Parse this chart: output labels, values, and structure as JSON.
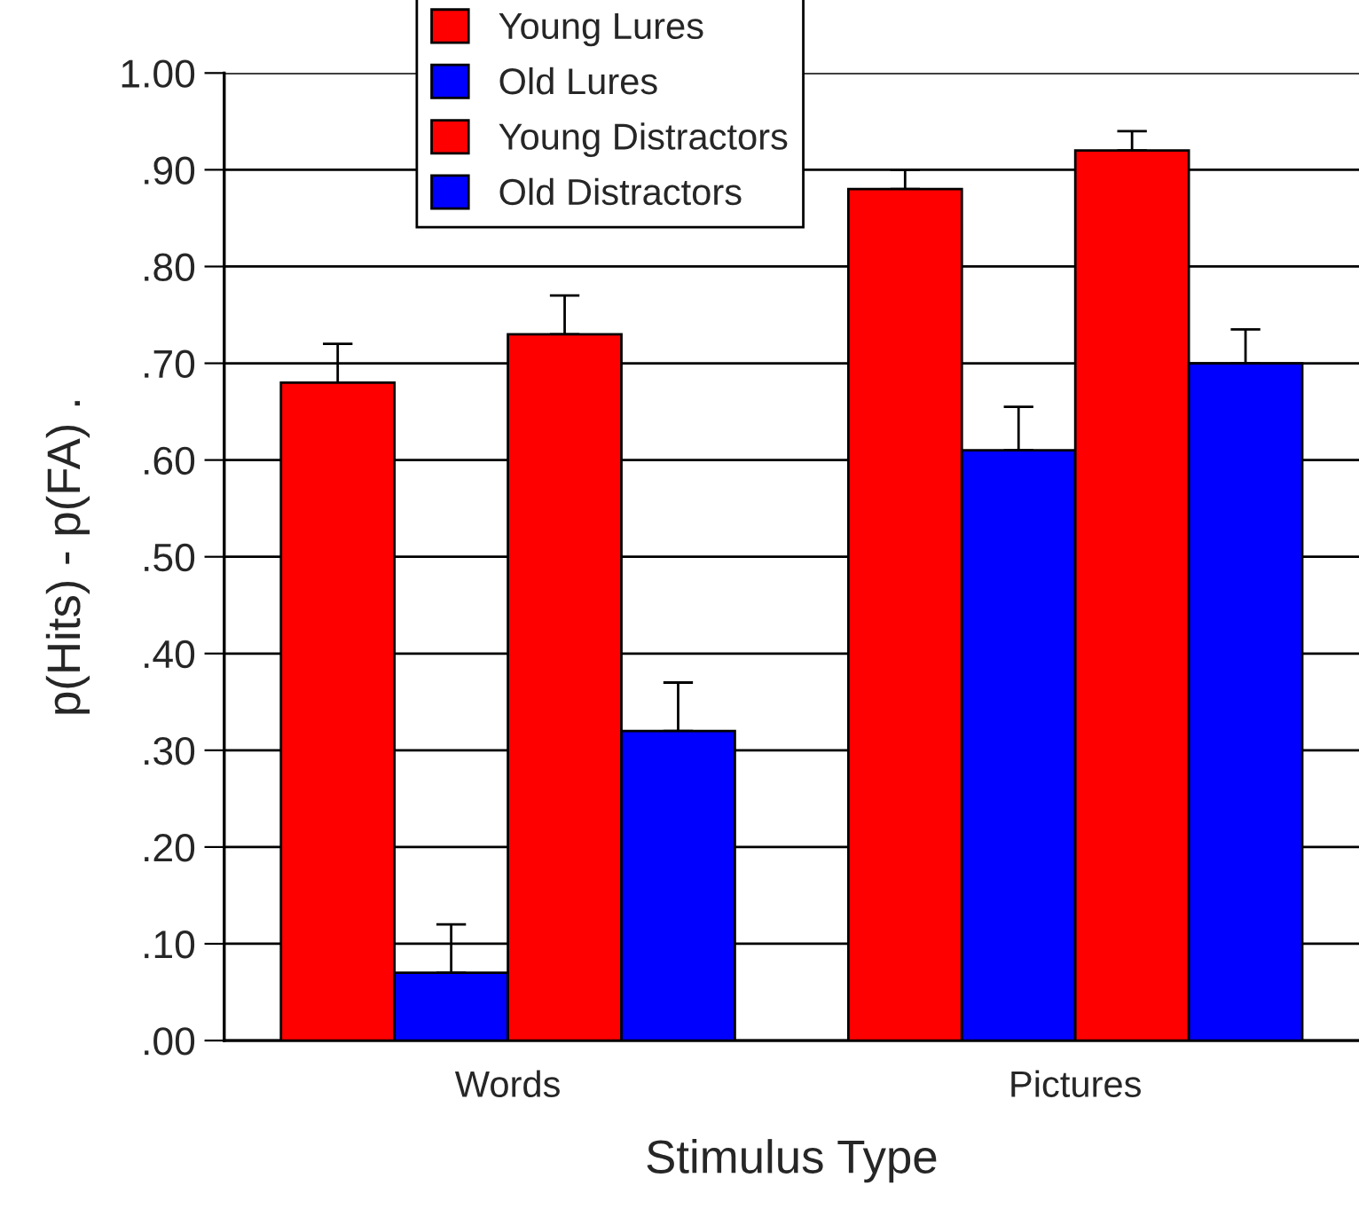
{
  "chart_data": {
    "type": "bar",
    "xlabel": "Stimulus Type",
    "ylabel": "p(Hits) - p(FA) .",
    "categories": [
      "Words",
      "Pictures"
    ],
    "series": [
      {
        "name": "Young Lures",
        "color": "#ff0000",
        "values": [
          0.68,
          0.88
        ],
        "errors": [
          [
            0.68,
            0.72
          ],
          [
            0.88,
            0.9
          ]
        ]
      },
      {
        "name": "Old Lures",
        "color": "#0000ff",
        "values": [
          0.07,
          0.61
        ],
        "errors": [
          [
            0.07,
            0.12
          ],
          [
            0.61,
            0.655
          ]
        ]
      },
      {
        "name": "Young Distractors",
        "color": "#ff0000",
        "values": [
          0.73,
          0.92
        ],
        "errors": [
          [
            0.73,
            0.77
          ],
          [
            0.92,
            0.94
          ]
        ]
      },
      {
        "name": "Old Distractors",
        "color": "#0000ff",
        "values": [
          0.32,
          0.7
        ],
        "errors": [
          [
            0.32,
            0.37
          ],
          [
            0.7,
            0.735
          ]
        ]
      }
    ],
    "ylim": [
      0,
      1.0
    ],
    "yticks": [
      {
        "value": 0,
        "label": ".00"
      },
      {
        "value": 0.1,
        "label": ".10"
      },
      {
        "value": 0.2,
        "label": ".20"
      },
      {
        "value": 0.3,
        "label": ".30"
      },
      {
        "value": 0.4,
        "label": ".40"
      },
      {
        "value": 0.5,
        "label": ".50"
      },
      {
        "value": 0.6,
        "label": ".60"
      },
      {
        "value": 0.7,
        "label": ".70"
      },
      {
        "value": 0.8,
        "label": ".80"
      },
      {
        "value": 0.9,
        "label": ".90"
      },
      {
        "value": 1.0,
        "label": "1.00"
      }
    ],
    "grid": "y",
    "legend": "top"
  }
}
